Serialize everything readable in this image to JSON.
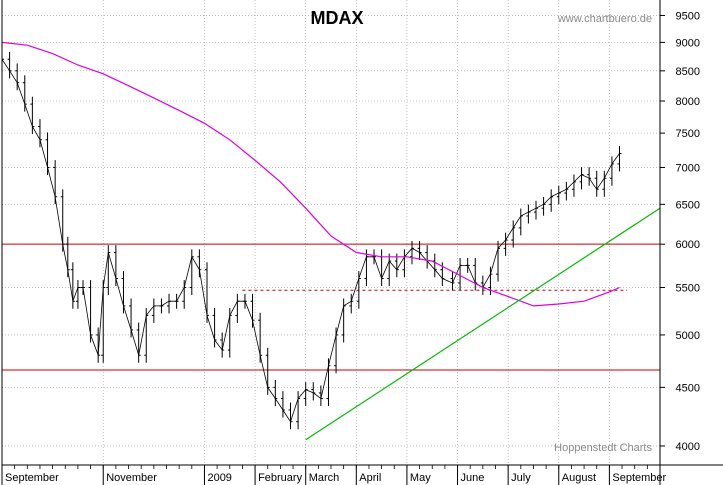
{
  "chart_data": {
    "type": "line",
    "title": "MDAX",
    "source": "www.chartbuero.de",
    "credit": "Hoppenstedt Charts",
    "y_scale": "log",
    "ylim": [
      3850,
      9800
    ],
    "y_ticks": [
      4000,
      4500,
      5000,
      5500,
      6000,
      6500,
      7000,
      7500,
      8000,
      8500,
      9000,
      9500
    ],
    "x_labels": [
      "September",
      "November",
      "2009",
      "February",
      "March",
      "April",
      "May",
      "June",
      "July",
      "August",
      "September"
    ],
    "x_label_positions": [
      0,
      2,
      4,
      5,
      6,
      7,
      8,
      9,
      10,
      11,
      12
    ],
    "xlim": [
      0,
      13
    ],
    "grid": true,
    "series": [
      {
        "name": "",
        "kind": "price",
        "color": "#000000",
        "x": [
          0,
          0.15,
          0.3,
          0.45,
          0.6,
          0.75,
          0.9,
          1.05,
          1.2,
          1.3,
          1.4,
          1.5,
          1.6,
          1.75,
          1.9,
          2.0,
          2.1,
          2.25,
          2.4,
          2.55,
          2.7,
          2.85,
          3.0,
          3.15,
          3.3,
          3.45,
          3.6,
          3.75,
          3.9,
          4.05,
          4.2,
          4.35,
          4.5,
          4.65,
          4.8,
          4.95,
          5.1,
          5.25,
          5.4,
          5.55,
          5.7,
          5.85,
          6.0,
          6.15,
          6.3,
          6.45,
          6.6,
          6.75,
          6.9,
          7.05,
          7.2,
          7.35,
          7.5,
          7.65,
          7.8,
          7.95,
          8.1,
          8.25,
          8.4,
          8.55,
          8.7,
          8.9,
          9.05,
          9.2,
          9.35,
          9.5,
          9.65,
          9.8,
          9.95,
          10.1,
          10.25,
          10.4,
          10.55,
          10.7,
          10.85,
          11.0,
          11.15,
          11.3,
          11.45,
          11.6,
          11.75,
          11.9,
          12.05,
          12.2
        ],
        "values": [
          8700,
          8500,
          8300,
          7950,
          7600,
          7400,
          7000,
          6600,
          6000,
          5700,
          5350,
          5500,
          5500,
          5000,
          4800,
          5500,
          5900,
          5600,
          5300,
          5050,
          4800,
          5200,
          5300,
          5300,
          5350,
          5350,
          5500,
          5850,
          5700,
          5200,
          4950,
          4850,
          5200,
          5350,
          5350,
          5150,
          4800,
          4500,
          4400,
          4300,
          4200,
          4400,
          4480,
          4450,
          4400,
          4700,
          5000,
          5300,
          5350,
          5600,
          5850,
          5850,
          5600,
          5800,
          5700,
          5850,
          5950,
          5900,
          5800,
          5700,
          5600,
          5550,
          5750,
          5750,
          5550,
          5500,
          5650,
          5950,
          6050,
          6200,
          6350,
          6400,
          6450,
          6500,
          6600,
          6650,
          6700,
          6800,
          6900,
          6850,
          6700,
          6850,
          7050,
          7200
        ]
      },
      {
        "name": "",
        "kind": "moving-average",
        "color": "#dd00dd",
        "x": [
          0,
          0.5,
          1,
          1.5,
          2,
          2.5,
          3,
          3.5,
          4,
          4.5,
          5,
          5.5,
          6,
          6.5,
          7,
          7.5,
          8,
          8.5,
          9,
          9.5,
          10,
          10.5,
          11,
          11.5,
          12,
          12.2
        ],
        "values": [
          9000,
          8950,
          8800,
          8600,
          8450,
          8250,
          8050,
          7850,
          7650,
          7400,
          7100,
          6800,
          6450,
          6100,
          5900,
          5850,
          5850,
          5800,
          5650,
          5500,
          5400,
          5300,
          5320,
          5350,
          5450,
          5500
        ]
      },
      {
        "name": "",
        "kind": "trendline",
        "color": "#00bb00",
        "x": [
          6,
          13
        ],
        "values": [
          4050,
          6450
        ]
      }
    ],
    "horizontal_lines": [
      {
        "value": 6000,
        "color": "#cc0000",
        "style": "solid",
        "x_from": 0,
        "x_to": 13
      },
      {
        "value": 4660,
        "color": "#cc0000",
        "style": "solid",
        "x_from": 0,
        "x_to": 13
      },
      {
        "value": 5470,
        "color": "#cc0000",
        "style": "dashed",
        "x_from": 4.75,
        "x_to": 12.35
      }
    ]
  }
}
